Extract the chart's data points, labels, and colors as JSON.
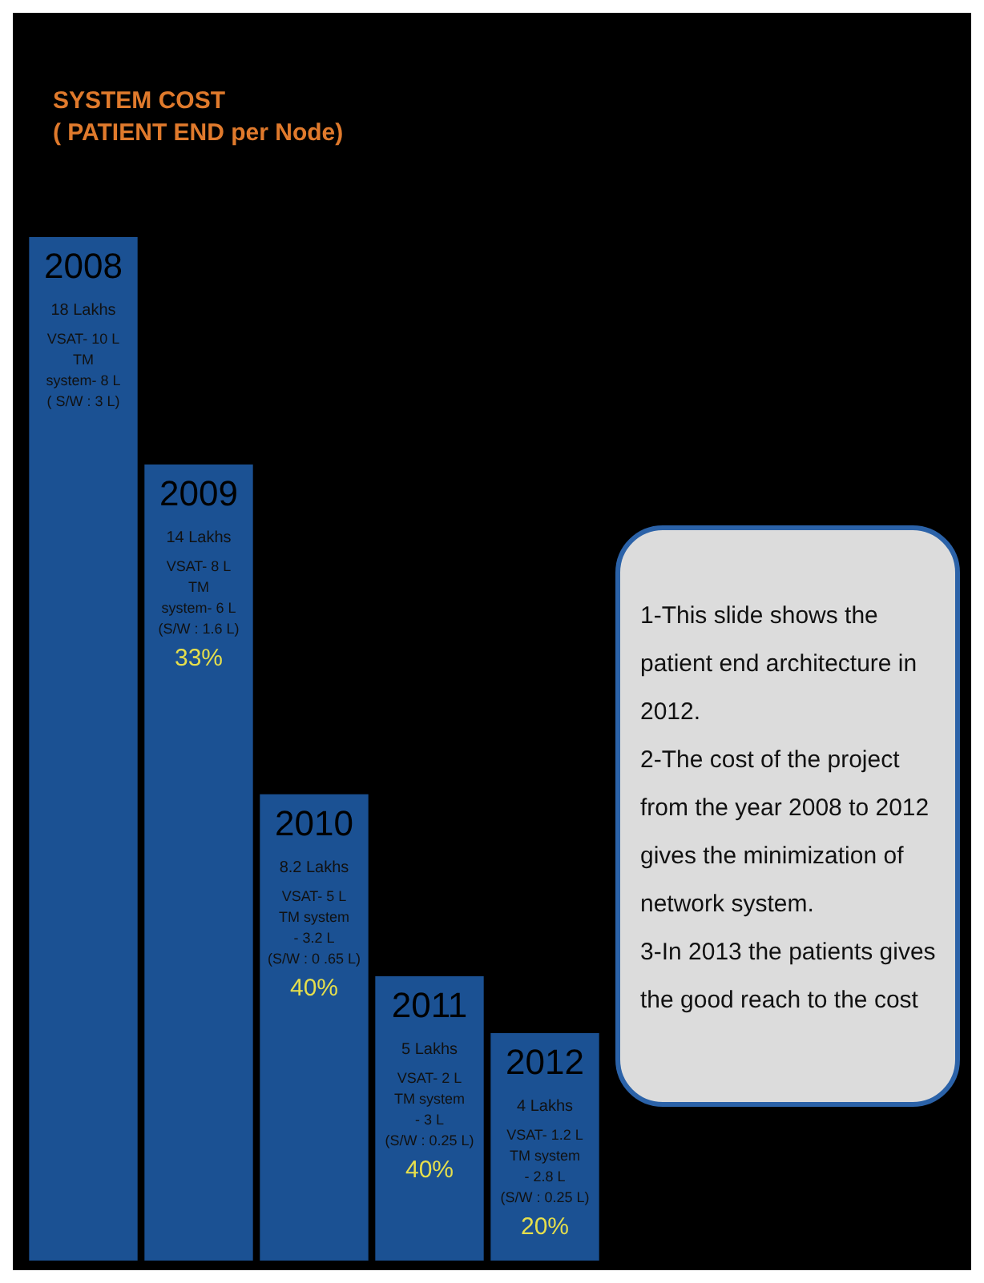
{
  "chart_data": {
    "type": "bar",
    "title": "SYSTEM COST\n( PATIENT END per Node)",
    "categories": [
      "2008",
      "2009",
      "2010",
      "2011",
      "2012"
    ],
    "values": [
      18,
      14,
      8.2,
      5,
      4
    ],
    "value_labels": [
      "18 Lakhs",
      "14 Lakhs",
      "8.2 Lakhs",
      "5 Lakhs",
      "4 Lakhs"
    ],
    "color": "#1b5193",
    "tick_labels": false,
    "annotations": [
      "VSAT- 10 L\nTM\nsystem- 8 L\n( S/W : 3 L)",
      "VSAT- 8 L\nTM\nsystem- 6 L\n(S/W : 1.6 L)",
      "VSAT- 5 L\nTM system\n- 3.2 L\n(S/W : 0 .65 L)",
      "VSAT- 2 L\nTM system\n- 3 L\n(S/W : 0.25 L)",
      "VSAT- 1.2 L\nTM system\n- 2.8 L\n(S/W : 0.25 L)",
      "33%",
      "40%",
      "40%",
      "20%",
      "1-This slide shows the patient end architecture in 2012.\n2-The cost of the project from the year 2008 to 2012 gives the minimization of network system.\n3-In 2013 the patients gives the good reach to the cost"
    ]
  }
}
